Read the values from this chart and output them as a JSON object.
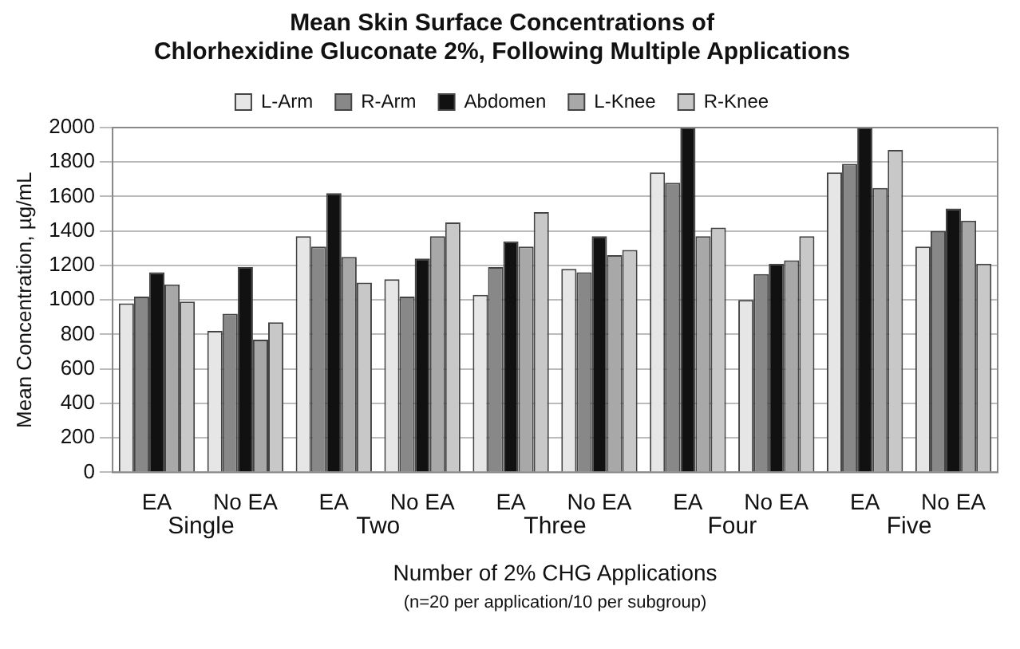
{
  "chart_data": {
    "type": "bar",
    "title": [
      "Mean Skin Surface Concentrations of",
      "Chlorhexidine Gluconate 2%, Following Multiple Applications"
    ],
    "xlabel": "Number of 2% CHG Applications",
    "ylabel": "Mean Concentration, µg/mL",
    "categories": [
      "EA",
      "No EA",
      "EA",
      "No EA",
      "EA",
      "No EA",
      "EA",
      "No EA",
      "EA",
      "No EA"
    ],
    "series": [
      {
        "name": "L-Arm",
        "color": "#e6e6e6",
        "values": [
          980,
          820,
          1370,
          1120,
          1030,
          1180,
          1740,
          1000,
          1740,
          1310
        ]
      },
      {
        "name": "R-Arm",
        "color": "#888888",
        "values": [
          1020,
          920,
          1310,
          1020,
          1190,
          1160,
          1680,
          1150,
          1790,
          1400
        ]
      },
      {
        "name": "Abdomen",
        "color": "#111111",
        "values": [
          1160,
          1190,
          1620,
          1240,
          1340,
          1370,
          2000,
          1210,
          2000,
          1530
        ]
      },
      {
        "name": "L-Knee",
        "color": "#a8a8a8",
        "values": [
          1090,
          770,
          1250,
          1370,
          1310,
          1260,
          1370,
          1230,
          1650,
          1460
        ]
      },
      {
        "name": "R-Knee",
        "color": "#c8c8c8",
        "values": [
          990,
          870,
          1100,
          1450,
          1510,
          1290,
          1420,
          1370,
          1870,
          1210
        ]
      }
    ],
    "annotations": [
      "Single",
      "Two",
      "Three",
      "Four",
      "Five",
      "(n=20 per application/10 per subgroup)"
    ],
    "ylim": [
      0,
      2000
    ],
    "yticks": [
      0,
      200,
      400,
      600,
      800,
      1000,
      1200,
      1400,
      1600,
      1800,
      2000
    ],
    "grid": "y",
    "legend": "top"
  }
}
